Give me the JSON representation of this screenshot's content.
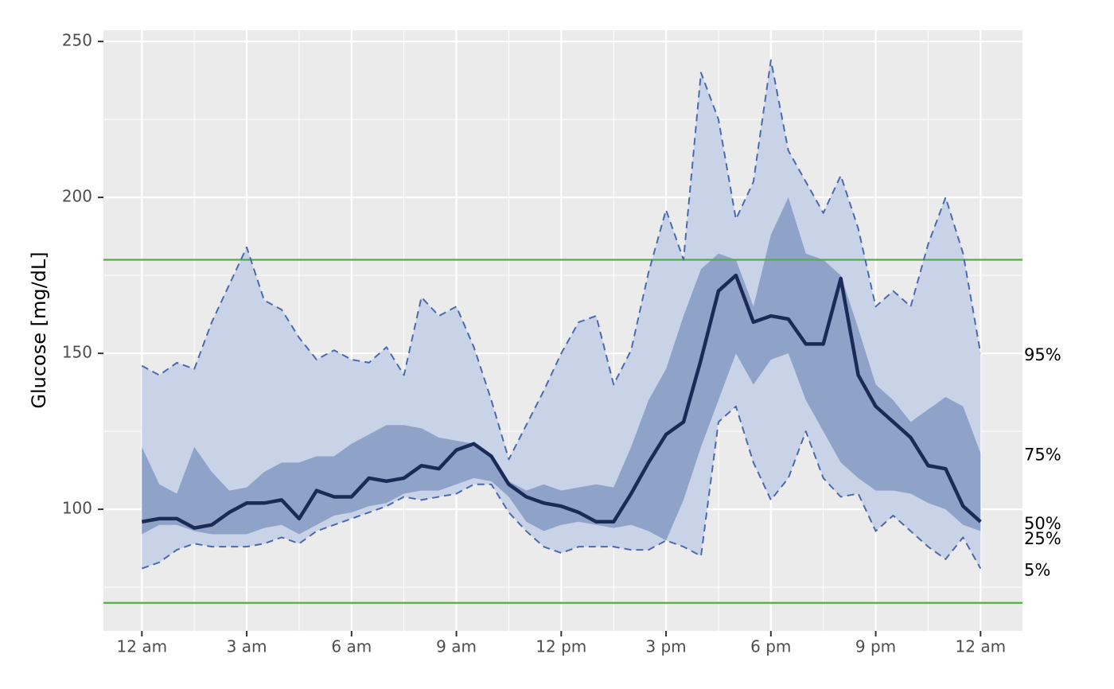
{
  "chart_data": {
    "type": "percentile-band",
    "y_label": "Glucose [mg/dL]",
    "x": [
      0,
      0.5,
      1,
      1.5,
      2,
      2.5,
      3,
      3.5,
      4,
      4.5,
      5,
      5.5,
      6,
      6.5,
      7,
      7.5,
      8,
      8.5,
      9,
      9.5,
      10,
      10.5,
      11,
      11.5,
      12,
      12.5,
      13,
      13.5,
      14,
      14.5,
      15,
      15.5,
      16,
      16.5,
      17,
      17.5,
      18,
      18.5,
      19,
      19.5,
      20,
      20.5,
      21,
      21.5,
      22,
      22.5,
      23,
      23.5,
      24
    ],
    "xlim": [
      -1.1,
      25.2
    ],
    "xticks": [
      {
        "value": 0,
        "label": "12 am"
      },
      {
        "value": 3,
        "label": "3 am"
      },
      {
        "value": 6,
        "label": "6 am"
      },
      {
        "value": 9,
        "label": "9 am"
      },
      {
        "value": 12,
        "label": "12 pm"
      },
      {
        "value": 15,
        "label": "3 pm"
      },
      {
        "value": 18,
        "label": "6 pm"
      },
      {
        "value": 21,
        "label": "9 pm"
      },
      {
        "value": 24,
        "label": "12 am"
      }
    ],
    "ylim": [
      61,
      253.6
    ],
    "yticks": [
      100,
      150,
      200,
      250
    ],
    "grid": true,
    "target_range": [
      70,
      180
    ],
    "target_color": "#4db33d",
    "outer_band_color": "#c8d3e8",
    "inner_band_color": "#8fa3c9",
    "series": [
      {
        "name": "95%",
        "color": "#4a6aad",
        "style": "dashed",
        "values": [
          146,
          143,
          147,
          145,
          160,
          172,
          184,
          167,
          164,
          155,
          148,
          151,
          148,
          147,
          152,
          143,
          168,
          162,
          165,
          152,
          135,
          116,
          127,
          138,
          150,
          160,
          162,
          140,
          151,
          176,
          196,
          180,
          240,
          225,
          193,
          205,
          244,
          215,
          205,
          195,
          207,
          190,
          165,
          170,
          165,
          185,
          200,
          182,
          150
        ]
      },
      {
        "name": "75%",
        "color": "#8fa3c9",
        "style": "none",
        "values": [
          120,
          108,
          105,
          120,
          112,
          106,
          107,
          112,
          115,
          115,
          117,
          117,
          121,
          124,
          127,
          127,
          126,
          123,
          122,
          121,
          117,
          109,
          106,
          108,
          106,
          107,
          108,
          107,
          120,
          135,
          145,
          162,
          177,
          182,
          180,
          165,
          188,
          200,
          182,
          180,
          175,
          158,
          140,
          135,
          128,
          132,
          136,
          133,
          118
        ]
      },
      {
        "name": "50%",
        "color": "#1a2b55",
        "style": "solid",
        "values": [
          96,
          97,
          97,
          94,
          95,
          99,
          102,
          102,
          103,
          97,
          106,
          104,
          104,
          110,
          109,
          110,
          114,
          113,
          119,
          121,
          117,
          108,
          104,
          102,
          101,
          99,
          96,
          96,
          105,
          115,
          124,
          128,
          148,
          170,
          175,
          160,
          162,
          161,
          153,
          153,
          174,
          143,
          133,
          128,
          123,
          114,
          113,
          101,
          96
        ]
      },
      {
        "name": "25%",
        "color": "#8fa3c9",
        "style": "none",
        "values": [
          92,
          95,
          95,
          93,
          92,
          92,
          92,
          94,
          95,
          92,
          95,
          98,
          99,
          101,
          102,
          105,
          106,
          106,
          108,
          110,
          109,
          104,
          96,
          93,
          95,
          96,
          95,
          94,
          95,
          93,
          90,
          103,
          120,
          135,
          150,
          140,
          148,
          150,
          135,
          125,
          115,
          110,
          106,
          106,
          105,
          102,
          100,
          95,
          93
        ]
      },
      {
        "name": "5%",
        "color": "#4a6aad",
        "style": "dashed",
        "values": [
          81,
          83,
          87,
          89,
          88,
          88,
          88,
          89,
          91,
          89,
          93,
          95,
          97,
          99,
          101,
          104,
          103,
          104,
          105,
          108,
          108,
          99,
          93,
          88,
          86,
          88,
          88,
          88,
          87,
          87,
          90,
          88,
          85,
          128,
          133,
          115,
          103,
          110,
          125,
          110,
          104,
          105,
          93,
          98,
          93,
          88,
          84,
          91,
          81
        ]
      }
    ]
  }
}
